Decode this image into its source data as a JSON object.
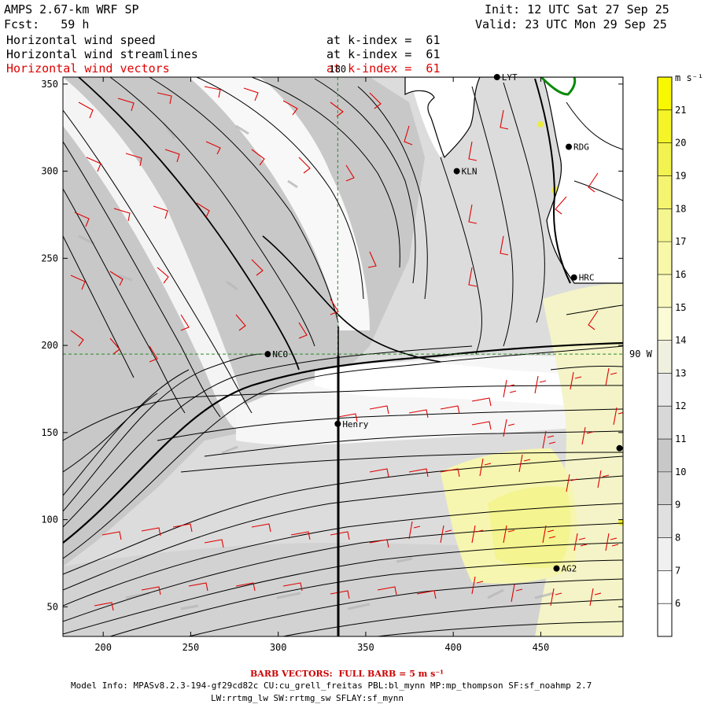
{
  "header": {
    "model": "AMPS 2.67-km WRF SP",
    "forecast": "Fcst:   59 h",
    "init": "Init: 12 UTC Sat 27 Sep 25",
    "valid": "Valid: 23 UTC Mon 29 Sep 25",
    "fields": [
      {
        "name": "Horizontal wind speed",
        "level": "at k-index =  61",
        "color": "#000000"
      },
      {
        "name": "Horizontal wind streamlines",
        "level": "at k-index =  61",
        "color": "#000000"
      },
      {
        "name": "Horizontal wind vectors",
        "level": "at k-index =  61",
        "color": "#e00000"
      }
    ]
  },
  "footer": {
    "barb_note": "BARB VECTORS:  FULL BARB = 5 m s⁻¹",
    "model_info": "Model Info: MPASv8.2.3-194-gf29cd82c CU:cu_grell_freitas PBL:bl_mynn MP:mp_thompson SF:sf_noahmp 2.7",
    "model_info2": "LW:rrtmg_lw SW:rrtmg_sw SFLAY:sf_mynn"
  },
  "chart_data": {
    "type": "heatmap",
    "x_ticks": [
      200,
      250,
      300,
      350,
      400,
      450
    ],
    "y_ticks": [
      50,
      100,
      150,
      200,
      250,
      300,
      350
    ],
    "xlim": [
      177,
      497
    ],
    "ylim": [
      33,
      354
    ],
    "grid_lines": [
      {
        "axis": "x",
        "value": 334,
        "label": "180",
        "color": "#2a8a2a"
      },
      {
        "axis": "y",
        "value": 195,
        "label": "90 W",
        "color": "#2a8a2a"
      }
    ],
    "stations": [
      {
        "name": "NCO",
        "x": 294,
        "y": 195
      },
      {
        "name": "Henry",
        "x": 334,
        "y": 155
      },
      {
        "name": "KLN",
        "x": 402,
        "y": 300
      },
      {
        "name": "RDG",
        "x": 466,
        "y": 314
      },
      {
        "name": "HRC",
        "x": 469,
        "y": 239
      },
      {
        "name": "AG2",
        "x": 459,
        "y": 72
      },
      {
        "name": "LYT",
        "x": 425,
        "y": 355
      },
      {
        "name": "",
        "x": 495,
        "y": 141
      }
    ],
    "colorbar": {
      "unit": "m s⁻¹",
      "min": 5,
      "max": 22,
      "labels": [
        6,
        7,
        8,
        9,
        10,
        11,
        12,
        13,
        14,
        15,
        16,
        17,
        18,
        19,
        20,
        21
      ],
      "colors": [
        "#ffffff",
        "#ffffff",
        "#f0f0f0",
        "#e0e0e0",
        "#d0d0d0",
        "#c8c8c8",
        "#d8d8d8",
        "#e8e8e8",
        "#f0f0e0",
        "#fbfbd8",
        "#fafac0",
        "#f8f8a8",
        "#f6f690",
        "#f4f470",
        "#f2f250",
        "#f4f428",
        "#f8f800"
      ]
    }
  }
}
